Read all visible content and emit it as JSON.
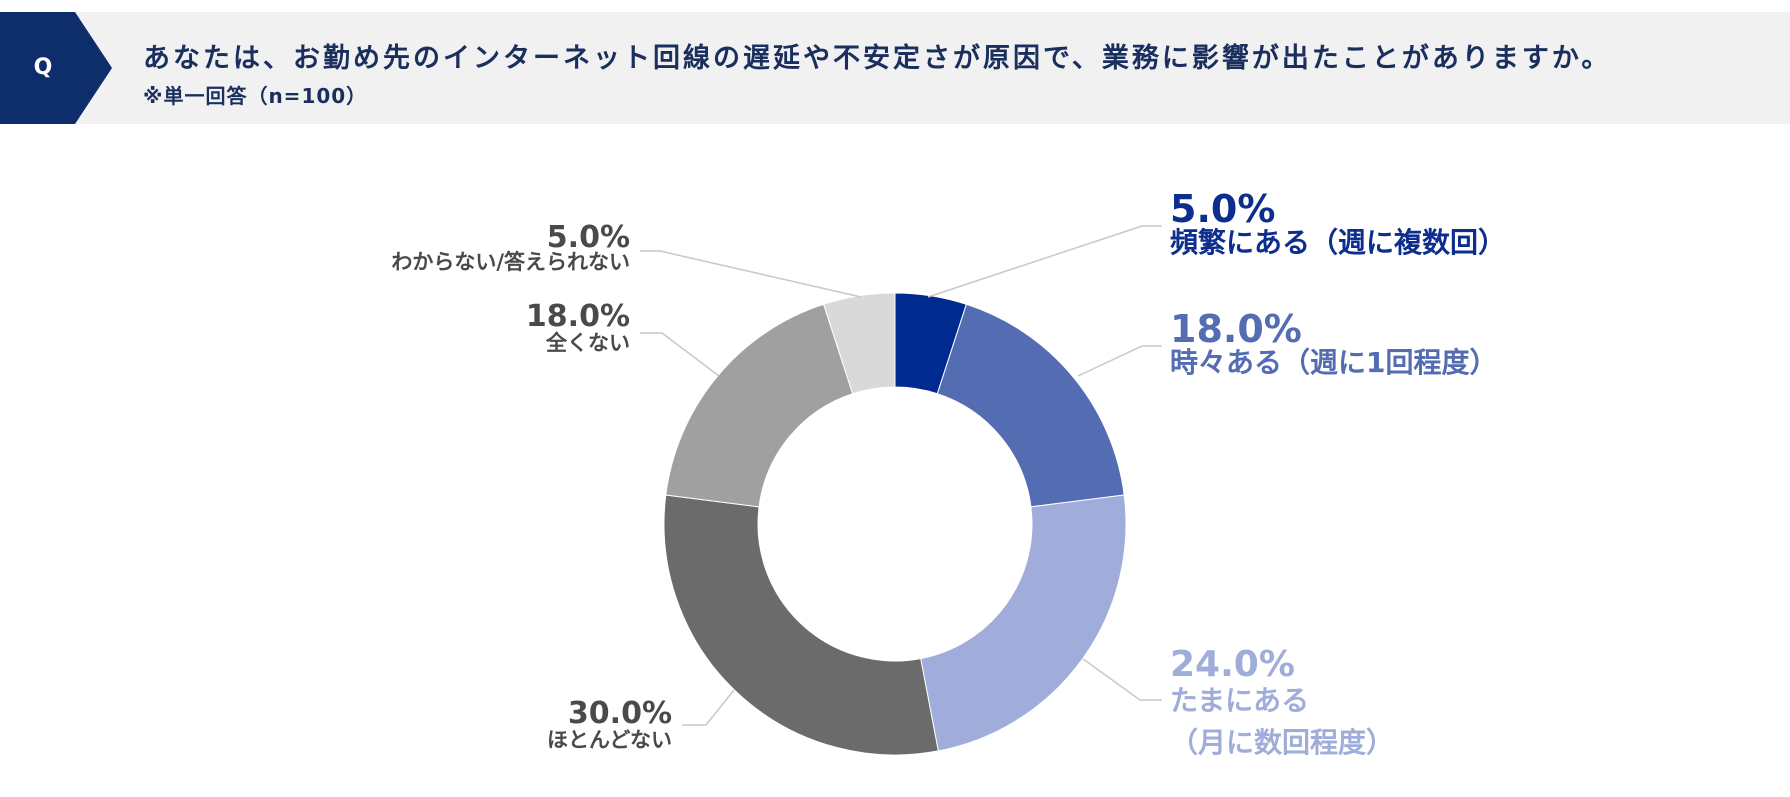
{
  "header": {
    "badge": "Q",
    "question": "あなたは、お勤め先のインターネット回線の遅延や不安定さが原因で、業務に影響が出たことがありますか。",
    "note": "※単一回答（n=100）",
    "badge_color": "#0d2d6b",
    "background_color": "#f1f1f1"
  },
  "chart_data": {
    "type": "pie",
    "variant": "donut",
    "start": "12 o'clock, clockwise",
    "slices": [
      {
        "label": "頻繁にある（週に複数回）",
        "label_lines": [
          "頻繁にある（週に複数回）"
        ],
        "value": 5.0,
        "value_label": "5.0%",
        "color": "#002a8f",
        "label_color": "#0d2d8f",
        "side": "right"
      },
      {
        "label": "時々ある（週に1回程度）",
        "label_lines": [
          "時々ある（週に1回程度）"
        ],
        "value": 18.0,
        "value_label": "18.0%",
        "color": "#546cb2",
        "label_color": "#546cb2",
        "side": "right"
      },
      {
        "label": "たまにある（月に数回程度）",
        "label_lines": [
          "たまにある",
          "（月に数回程度）"
        ],
        "value": 24.0,
        "value_label": "24.0%",
        "color": "#a0acd9",
        "label_color": "#a0acd9",
        "side": "right"
      },
      {
        "label": "ほとんどない",
        "label_lines": [
          "ほとんどない"
        ],
        "value": 30.0,
        "value_label": "30.0%",
        "color": "#6b6b6b",
        "label_color": "#4a4a4a",
        "side": "left"
      },
      {
        "label": "全くない",
        "label_lines": [
          "全くない"
        ],
        "value": 18.0,
        "value_label": "18.0%",
        "color": "#a0a0a0",
        "label_color": "#4a4a4a",
        "side": "left"
      },
      {
        "label": "わからない/答えられない",
        "label_lines": [
          "わからない/答えられない"
        ],
        "value": 5.0,
        "value_label": "5.0%",
        "color": "#d9d9d9",
        "label_color": "#4a4a4a",
        "side": "left"
      }
    ]
  }
}
